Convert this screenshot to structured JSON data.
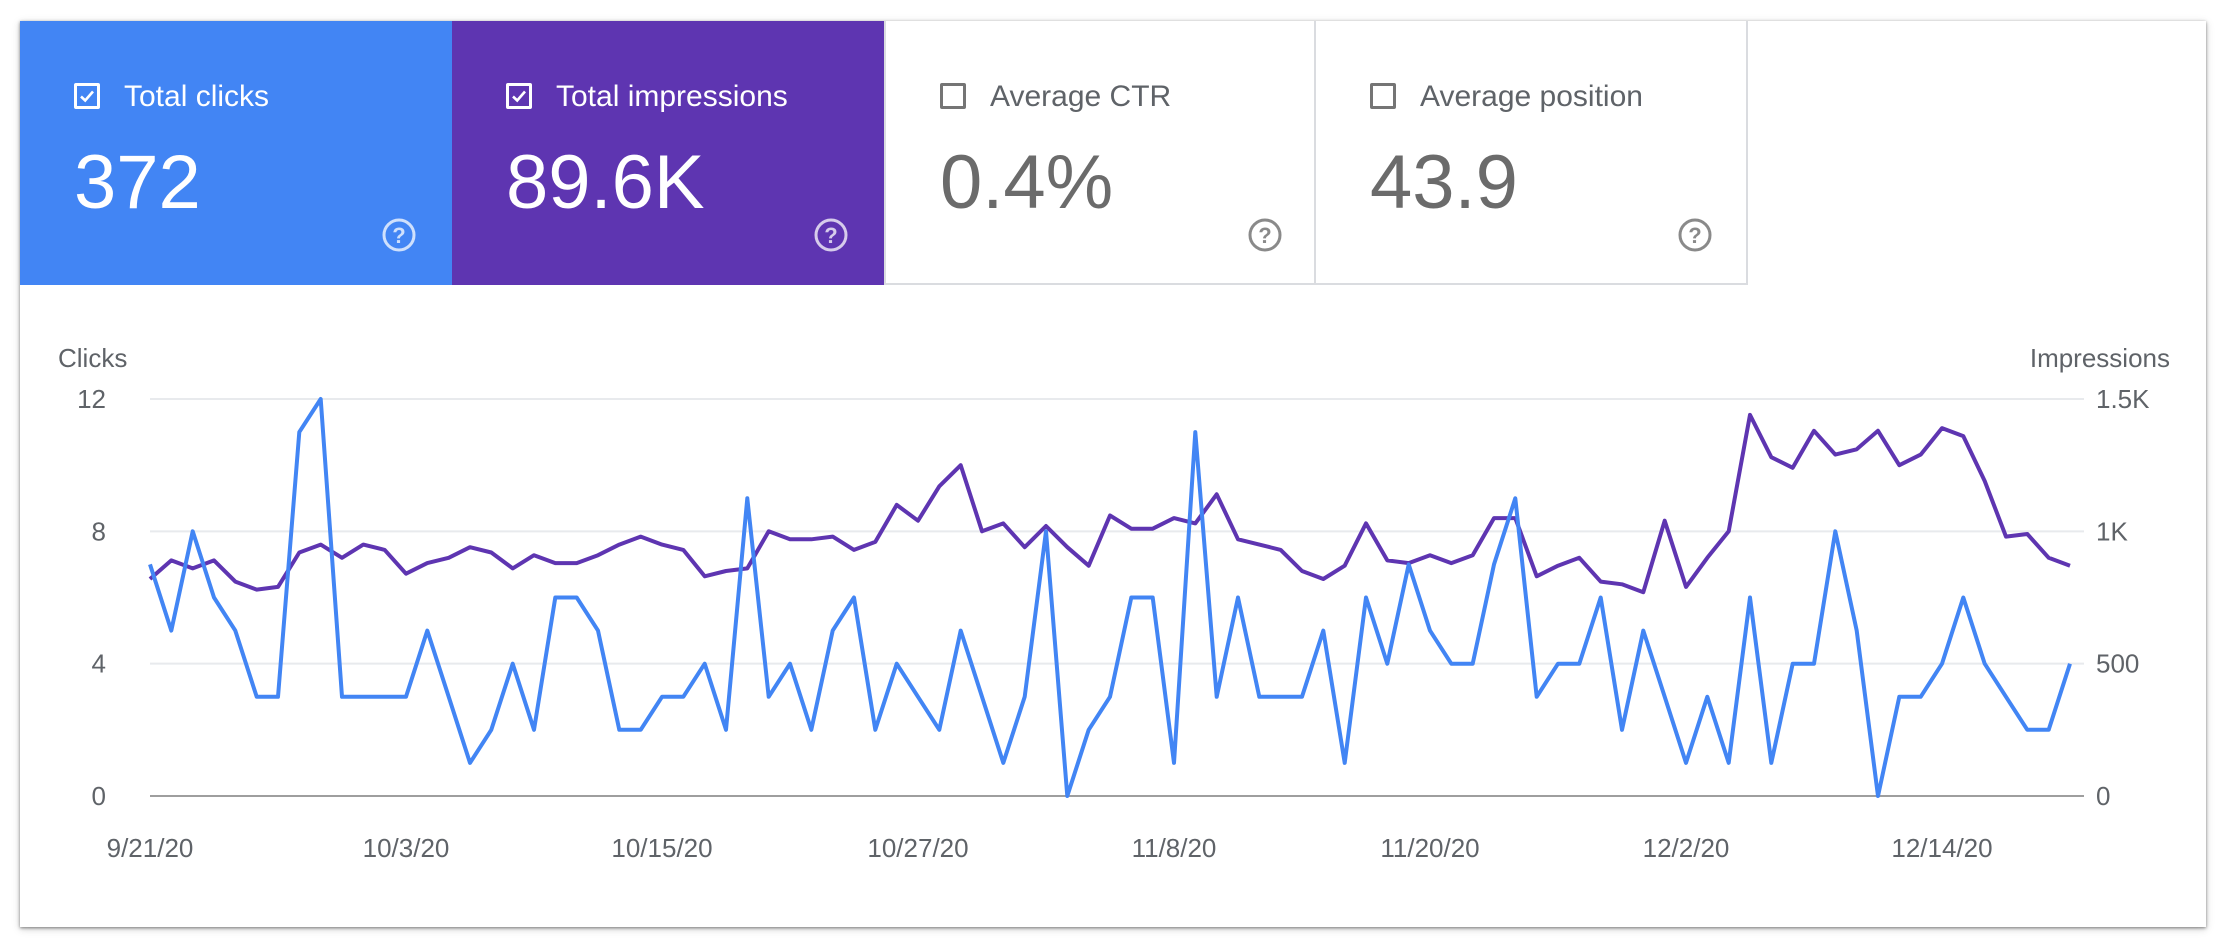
{
  "cards": [
    {
      "label": "Total clicks",
      "value": "372",
      "checked": true,
      "color": "#4285f4"
    },
    {
      "label": "Total impressions",
      "value": "89.6K",
      "checked": true,
      "color": "#5e35b1"
    },
    {
      "label": "Average CTR",
      "value": "0.4%",
      "checked": false,
      "color": "#ffffff"
    },
    {
      "label": "Average position",
      "value": "43.9",
      "checked": false,
      "color": "#ffffff"
    }
  ],
  "icons": {
    "checkbox": "checkbox-icon",
    "help": "help-circle-icon"
  },
  "chart_data": {
    "type": "line",
    "xlabel": "",
    "ylabel_left": "Clicks",
    "ylabel_right": "Impressions",
    "ylim_left": [
      0,
      12
    ],
    "ylim_right": [
      0,
      1500
    ],
    "yticks_left": [
      "12",
      "8",
      "4",
      "0"
    ],
    "yticks_right": [
      "1.5K",
      "1K",
      "500",
      "0"
    ],
    "xticks": [
      "9/21/20",
      "10/3/20",
      "10/15/20",
      "10/27/20",
      "11/8/20",
      "11/20/20",
      "12/2/20",
      "12/14/20"
    ],
    "x_start": "9/21/20",
    "x_end": "12/21/20",
    "grid": true,
    "series": [
      {
        "name": "Clicks",
        "axis": "left",
        "color": "#4285f4",
        "values": [
          7,
          5,
          8,
          6,
          5,
          3,
          3,
          11,
          12,
          3,
          3,
          3,
          3,
          5,
          3,
          1,
          2,
          4,
          2,
          6,
          6,
          5,
          2,
          2,
          3,
          3,
          4,
          2,
          9,
          3,
          4,
          2,
          5,
          6,
          2,
          4,
          3,
          2,
          5,
          3,
          1,
          3,
          8,
          0,
          2,
          3,
          6,
          6,
          1,
          11,
          3,
          6,
          3,
          3,
          3,
          5,
          1,
          6,
          4,
          7,
          5,
          4,
          4,
          7,
          9,
          3,
          4,
          4,
          6,
          2,
          5,
          3,
          1,
          3,
          1,
          6,
          1,
          4,
          4,
          8,
          5,
          0,
          3,
          3,
          4,
          6,
          4,
          3,
          2,
          2,
          4
        ]
      },
      {
        "name": "Impressions",
        "axis": "right",
        "color": "#5e35b1",
        "values": [
          820,
          890,
          860,
          890,
          810,
          780,
          790,
          920,
          950,
          900,
          950,
          930,
          840,
          880,
          900,
          940,
          920,
          860,
          910,
          880,
          880,
          910,
          950,
          980,
          950,
          930,
          830,
          850,
          860,
          1000,
          970,
          970,
          980,
          930,
          960,
          1100,
          1040,
          1170,
          1250,
          1000,
          1030,
          940,
          1020,
          940,
          870,
          1060,
          1010,
          1010,
          1050,
          1030,
          1140,
          970,
          950,
          930,
          850,
          820,
          870,
          1030,
          890,
          880,
          910,
          880,
          910,
          1050,
          1050,
          830,
          870,
          900,
          810,
          800,
          770,
          1040,
          790,
          900,
          1000,
          1440,
          1280,
          1240,
          1380,
          1290,
          1310,
          1380,
          1250,
          1290,
          1390,
          1360,
          1190,
          980,
          990,
          900,
          870
        ]
      }
    ]
  }
}
